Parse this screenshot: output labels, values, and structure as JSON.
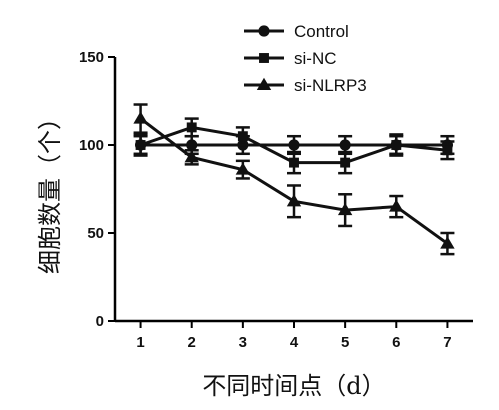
{
  "chart_data": {
    "type": "line",
    "xlabel": "不同时间点（d）",
    "ylabel": "细胞数量（个）",
    "x": [
      1,
      2,
      3,
      4,
      5,
      6,
      7
    ],
    "xlim": [
      0.5,
      7.5
    ],
    "ylim": [
      0,
      150
    ],
    "yticks": [
      0,
      50,
      100,
      150
    ],
    "grid": false,
    "legend": "top-right",
    "series": [
      {
        "name": "Control",
        "marker": "circle",
        "values": [
          100,
          100,
          100,
          100,
          100,
          100,
          100
        ],
        "errors": [
          5,
          5,
          5,
          5,
          5,
          5,
          5
        ]
      },
      {
        "name": "si-NC",
        "marker": "square",
        "values": [
          100,
          110,
          105,
          90,
          90,
          100,
          97
        ],
        "errors": [
          6,
          5,
          5,
          6,
          6,
          6,
          5
        ]
      },
      {
        "name": "si-NLRP3",
        "marker": "triangle",
        "values": [
          115,
          93,
          86,
          68,
          63,
          65,
          44
        ],
        "errors": [
          8,
          4,
          5,
          9,
          9,
          6,
          6
        ]
      }
    ]
  }
}
